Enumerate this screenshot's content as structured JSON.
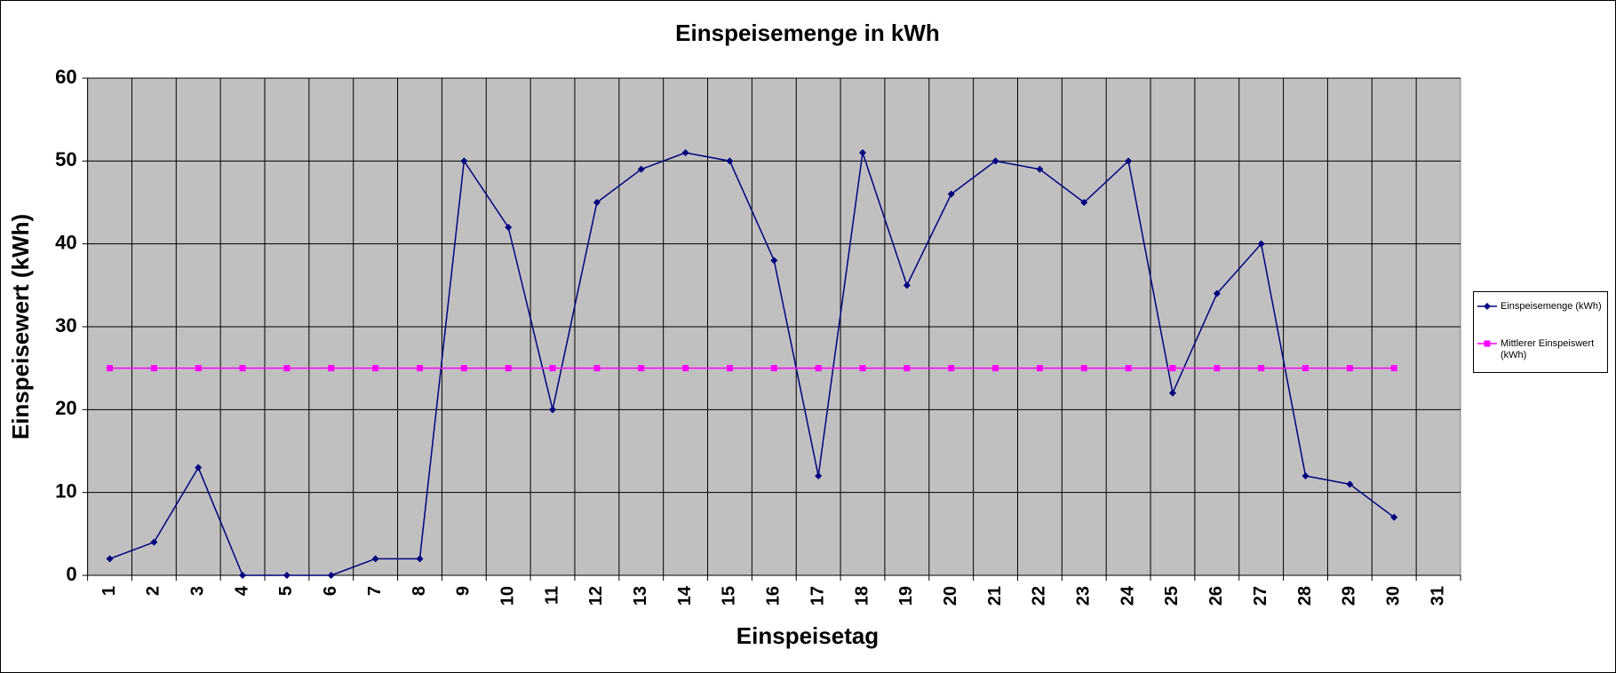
{
  "chart_data": {
    "type": "line",
    "title": "Einspeisemenge in kWh",
    "xlabel": "Einspeisetag",
    "ylabel": "Einspeisewert  (kWh)",
    "categories": [
      "1",
      "2",
      "3",
      "4",
      "5",
      "6",
      "7",
      "8",
      "9",
      "10",
      "11",
      "12",
      "13",
      "14",
      "15",
      "16",
      "17",
      "18",
      "19",
      "20",
      "21",
      "22",
      "23",
      "24",
      "25",
      "26",
      "27",
      "28",
      "29",
      "30",
      "31"
    ],
    "series": [
      {
        "name": "Einspeisemenge (kWh)",
        "color": "#000080",
        "marker": "diamond",
        "values": [
          2,
          4,
          13,
          0,
          0,
          0,
          2,
          2,
          50,
          42,
          20,
          45,
          49,
          51,
          50,
          38,
          12,
          51,
          35,
          46,
          50,
          49,
          45,
          50,
          22,
          34,
          40,
          12,
          11,
          7,
          null
        ]
      },
      {
        "name": "Mittlerer Einspeiswert (kWh)",
        "color": "#ff00ff",
        "marker": "square",
        "values": [
          25,
          25,
          25,
          25,
          25,
          25,
          25,
          25,
          25,
          25,
          25,
          25,
          25,
          25,
          25,
          25,
          25,
          25,
          25,
          25,
          25,
          25,
          25,
          25,
          25,
          25,
          25,
          25,
          25,
          25,
          null
        ]
      }
    ],
    "ylim": [
      0,
      60
    ],
    "yticks": [
      0,
      10,
      20,
      30,
      40,
      50,
      60
    ],
    "grid": true,
    "legend": "right",
    "plot_background": "#c0c0c0"
  }
}
